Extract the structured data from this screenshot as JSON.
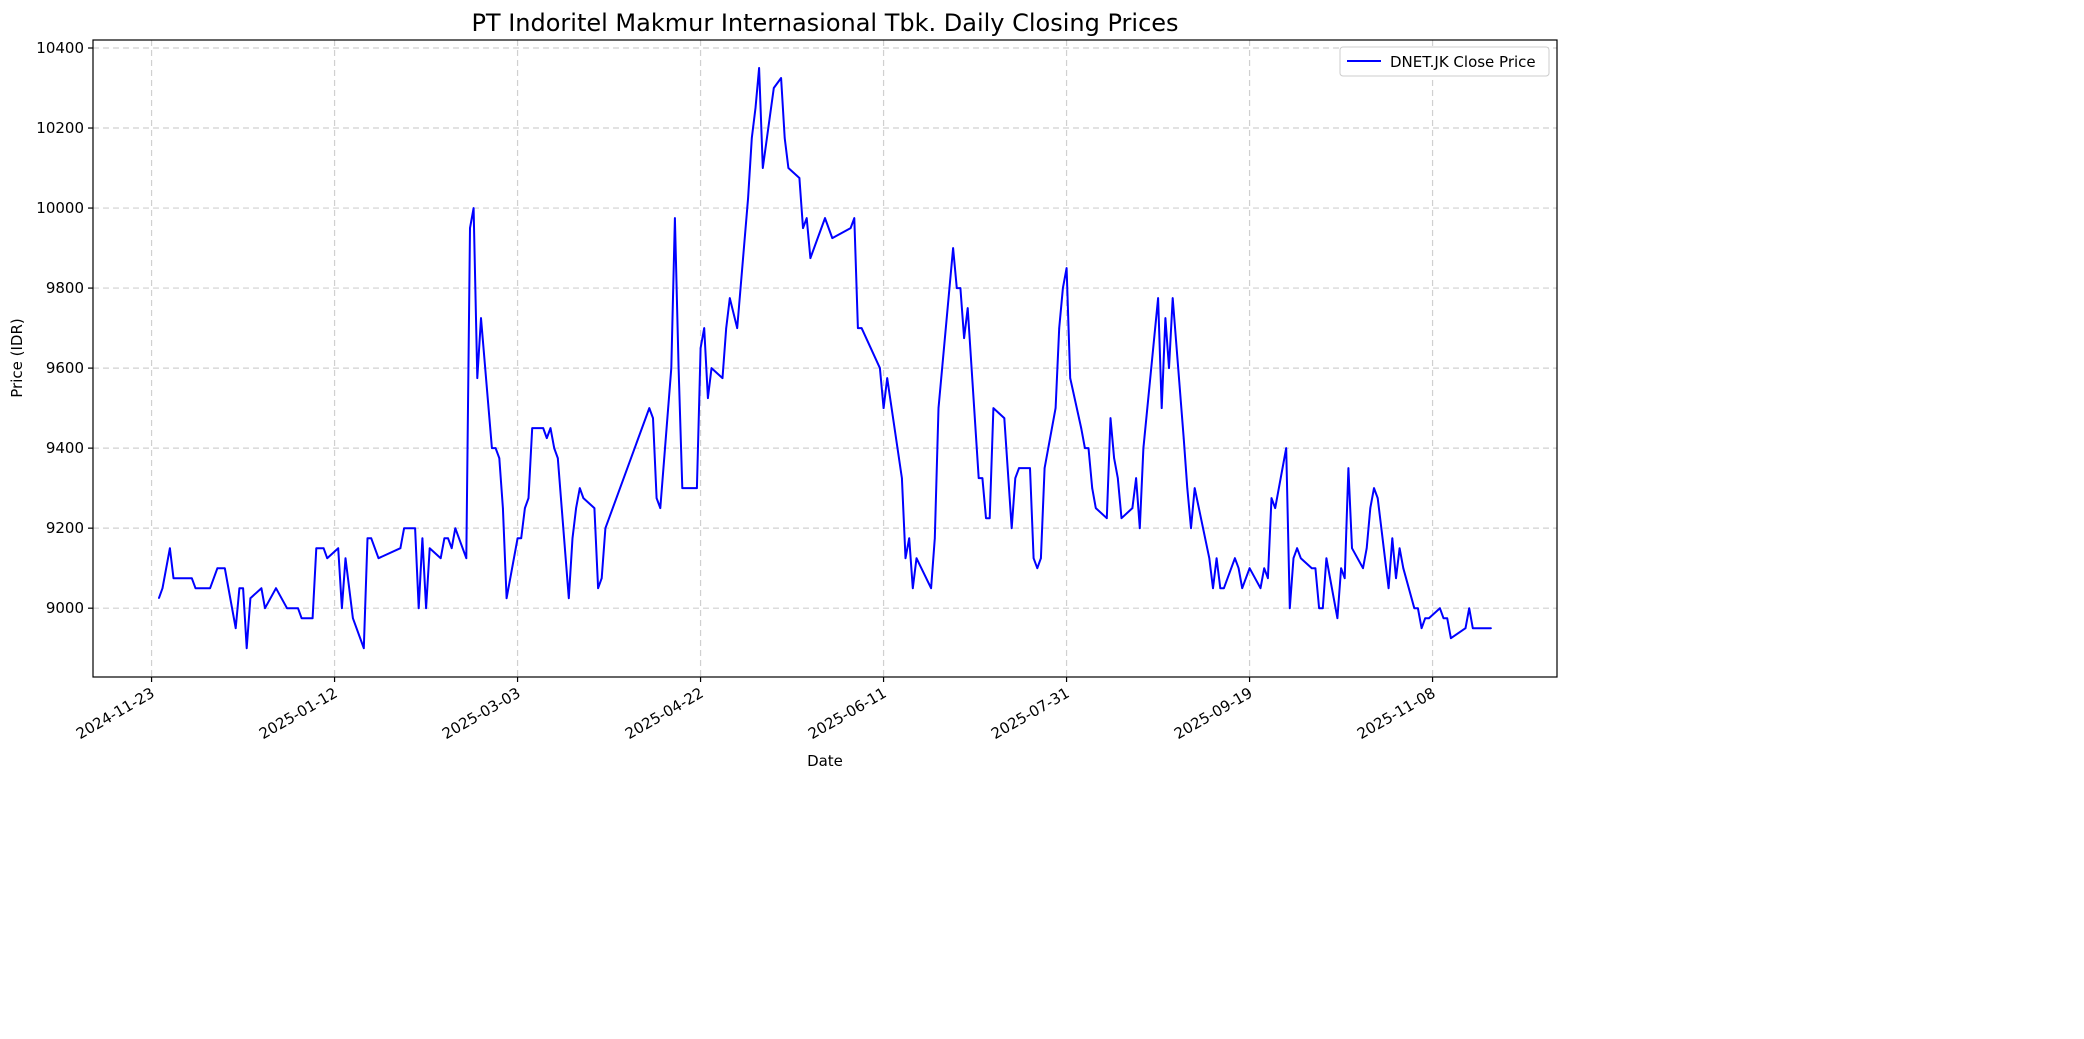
{
  "chart_data": {
    "type": "line",
    "title": "PT Indoritel Makmur Internasional Tbk. Daily Closing Prices",
    "xlabel": "Date",
    "ylabel": "Price (IDR)",
    "xlim": [
      "2024-11-07",
      "2025-12-12"
    ],
    "ylim": [
      8828,
      10420
    ],
    "x_ticks": [
      "2024-11-23",
      "2025-01-12",
      "2025-03-03",
      "2025-04-22",
      "2025-06-11",
      "2025-07-31",
      "2025-09-19",
      "2025-11-08"
    ],
    "y_ticks": [
      9000,
      9200,
      9400,
      9600,
      9800,
      10000,
      10200,
      10400
    ],
    "grid": true,
    "legend_position": "top-right",
    "series": [
      {
        "name": "DNET.JK Close Price",
        "color": "#0000ff",
        "x": [
          "2024-11-25",
          "2024-11-26",
          "2024-11-28",
          "2024-11-29",
          "2024-12-04",
          "2024-12-05",
          "2024-12-09",
          "2024-12-11",
          "2024-12-13",
          "2024-12-16",
          "2024-12-17",
          "2024-12-18",
          "2024-12-19",
          "2024-12-20",
          "2024-12-23",
          "2024-12-24",
          "2024-12-27",
          "2024-12-30",
          "2025-01-02",
          "2025-01-03",
          "2025-01-06",
          "2025-01-07",
          "2025-01-09",
          "2025-01-10",
          "2025-01-13",
          "2025-01-14",
          "2025-01-15",
          "2025-01-17",
          "2025-01-20",
          "2025-01-21",
          "2025-01-22",
          "2025-01-24",
          "2025-01-30",
          "2025-01-31",
          "2025-02-03",
          "2025-02-04",
          "2025-02-05",
          "2025-02-06",
          "2025-02-07",
          "2025-02-10",
          "2025-02-11",
          "2025-02-12",
          "2025-02-13",
          "2025-02-14",
          "2025-02-17",
          "2025-02-18",
          "2025-02-19",
          "2025-02-20",
          "2025-02-21",
          "2025-02-24",
          "2025-02-25",
          "2025-02-26",
          "2025-02-27",
          "2025-02-28",
          "2025-03-03",
          "2025-03-04",
          "2025-03-05",
          "2025-03-06",
          "2025-03-07",
          "2025-03-10",
          "2025-03-11",
          "2025-03-12",
          "2025-03-13",
          "2025-03-14",
          "2025-03-17",
          "2025-03-18",
          "2025-03-19",
          "2025-03-20",
          "2025-03-21",
          "2025-03-24",
          "2025-03-25",
          "2025-03-26",
          "2025-03-27",
          "2025-04-08",
          "2025-04-09",
          "2025-04-10",
          "2025-04-11",
          "2025-04-14",
          "2025-04-15",
          "2025-04-16",
          "2025-04-17",
          "2025-04-21",
          "2025-04-22",
          "2025-04-23",
          "2025-04-24",
          "2025-04-25",
          "2025-04-28",
          "2025-04-29",
          "2025-04-30",
          "2025-05-02",
          "2025-05-05",
          "2025-05-06",
          "2025-05-07",
          "2025-05-08",
          "2025-05-09",
          "2025-05-12",
          "2025-05-14",
          "2025-05-15",
          "2025-05-16",
          "2025-05-19",
          "2025-05-20",
          "2025-05-21",
          "2025-05-22",
          "2025-05-26",
          "2025-05-28",
          "2025-06-02",
          "2025-06-03",
          "2025-06-04",
          "2025-06-05",
          "2025-06-10",
          "2025-06-11",
          "2025-06-12",
          "2025-06-16",
          "2025-06-17",
          "2025-06-18",
          "2025-06-19",
          "2025-06-20",
          "2025-06-24",
          "2025-06-25",
          "2025-06-26",
          "2025-06-30",
          "2025-07-01",
          "2025-07-02",
          "2025-07-03",
          "2025-07-04",
          "2025-07-07",
          "2025-07-08",
          "2025-07-09",
          "2025-07-10",
          "2025-07-11",
          "2025-07-14",
          "2025-07-16",
          "2025-07-17",
          "2025-07-18",
          "2025-07-21",
          "2025-07-22",
          "2025-07-23",
          "2025-07-24",
          "2025-07-25",
          "2025-07-28",
          "2025-07-29",
          "2025-07-30",
          "2025-07-31",
          "2025-08-01",
          "2025-08-04",
          "2025-08-05",
          "2025-08-06",
          "2025-08-07",
          "2025-08-08",
          "2025-08-11",
          "2025-08-12",
          "2025-08-13",
          "2025-08-14",
          "2025-08-15",
          "2025-08-18",
          "2025-08-19",
          "2025-08-20",
          "2025-08-21",
          "2025-08-25",
          "2025-08-26",
          "2025-08-27",
          "2025-08-28",
          "2025-08-29",
          "2025-09-01",
          "2025-09-02",
          "2025-09-03",
          "2025-09-04",
          "2025-09-08",
          "2025-09-09",
          "2025-09-10",
          "2025-09-11",
          "2025-09-12",
          "2025-09-15",
          "2025-09-16",
          "2025-09-17",
          "2025-09-19",
          "2025-09-22",
          "2025-09-23",
          "2025-09-24",
          "2025-09-25",
          "2025-09-26",
          "2025-09-29",
          "2025-09-30",
          "2025-10-01",
          "2025-10-02",
          "2025-10-03",
          "2025-10-06",
          "2025-10-07",
          "2025-10-08",
          "2025-10-09",
          "2025-10-10",
          "2025-10-13",
          "2025-10-14",
          "2025-10-15",
          "2025-10-16",
          "2025-10-17",
          "2025-10-20",
          "2025-10-21",
          "2025-10-22",
          "2025-10-23",
          "2025-10-24",
          "2025-10-27",
          "2025-10-28",
          "2025-10-29",
          "2025-10-30",
          "2025-10-31",
          "2025-11-03",
          "2025-11-04",
          "2025-11-05",
          "2025-11-06",
          "2025-11-07",
          "2025-11-10",
          "2025-11-11",
          "2025-11-12",
          "2025-11-13",
          "2025-11-17",
          "2025-11-18",
          "2025-11-19",
          "2025-11-24"
        ],
        "y": [
          9025,
          9050,
          9150,
          9075,
          9075,
          9050,
          9050,
          9100,
          9100,
          8950,
          9050,
          9050,
          8900,
          9025,
          9050,
          9000,
          9050,
          9000,
          9000,
          8975,
          8975,
          9150,
          9150,
          9125,
          9150,
          9000,
          9125,
          8975,
          8900,
          9175,
          9175,
          9125,
          9150,
          9200,
          9200,
          9000,
          9175,
          9000,
          9150,
          9125,
          9175,
          9175,
          9150,
          9200,
          9125,
          9950,
          10000,
          9575,
          9725,
          9400,
          9400,
          9375,
          9250,
          9025,
          9175,
          9175,
          9250,
          9275,
          9450,
          9450,
          9425,
          9450,
          9400,
          9375,
          9025,
          9175,
          9250,
          9300,
          9275,
          9250,
          9050,
          9075,
          9200,
          9500,
          9475,
          9275,
          9250,
          9600,
          9975,
          9600,
          9300,
          9300,
          9650,
          9700,
          9525,
          9600,
          9575,
          9700,
          9775,
          9700,
          10025,
          10175,
          10250,
          10350,
          10100,
          10300,
          10325,
          10175,
          10100,
          10075,
          9950,
          9975,
          9875,
          9975,
          9925,
          9950,
          9975,
          9700,
          9700,
          9600,
          9500,
          9575,
          9325,
          9125,
          9175,
          9050,
          9125,
          9050,
          9175,
          9500,
          9900,
          9800,
          9800,
          9675,
          9750,
          9325,
          9325,
          9225,
          9225,
          9500,
          9475,
          9200,
          9325,
          9350,
          9350,
          9125,
          9100,
          9125,
          9350,
          9500,
          9700,
          9800,
          9850,
          9575,
          9450,
          9400,
          9400,
          9300,
          9250,
          9225,
          9475,
          9375,
          9325,
          9225,
          9250,
          9325,
          9200,
          9400,
          9775,
          9500,
          9725,
          9600,
          9775,
          9425,
          9300,
          9200,
          9300,
          9125,
          9050,
          9125,
          9050,
          9050,
          9125,
          9100,
          9050,
          9100,
          9050,
          9100,
          9075,
          9275,
          9250,
          9400,
          9000,
          9125,
          9150,
          9125,
          9100,
          9100,
          9000,
          9000,
          9125,
          8975,
          9100,
          9075,
          9350,
          9150,
          9100,
          9150,
          9250,
          9300,
          9275,
          9050,
          9175,
          9075,
          9150,
          9100,
          9000,
          9000,
          8950,
          8975,
          8975,
          9000,
          8975,
          8975,
          8925,
          8950,
          9000,
          8950,
          8950
        ]
      }
    ]
  }
}
